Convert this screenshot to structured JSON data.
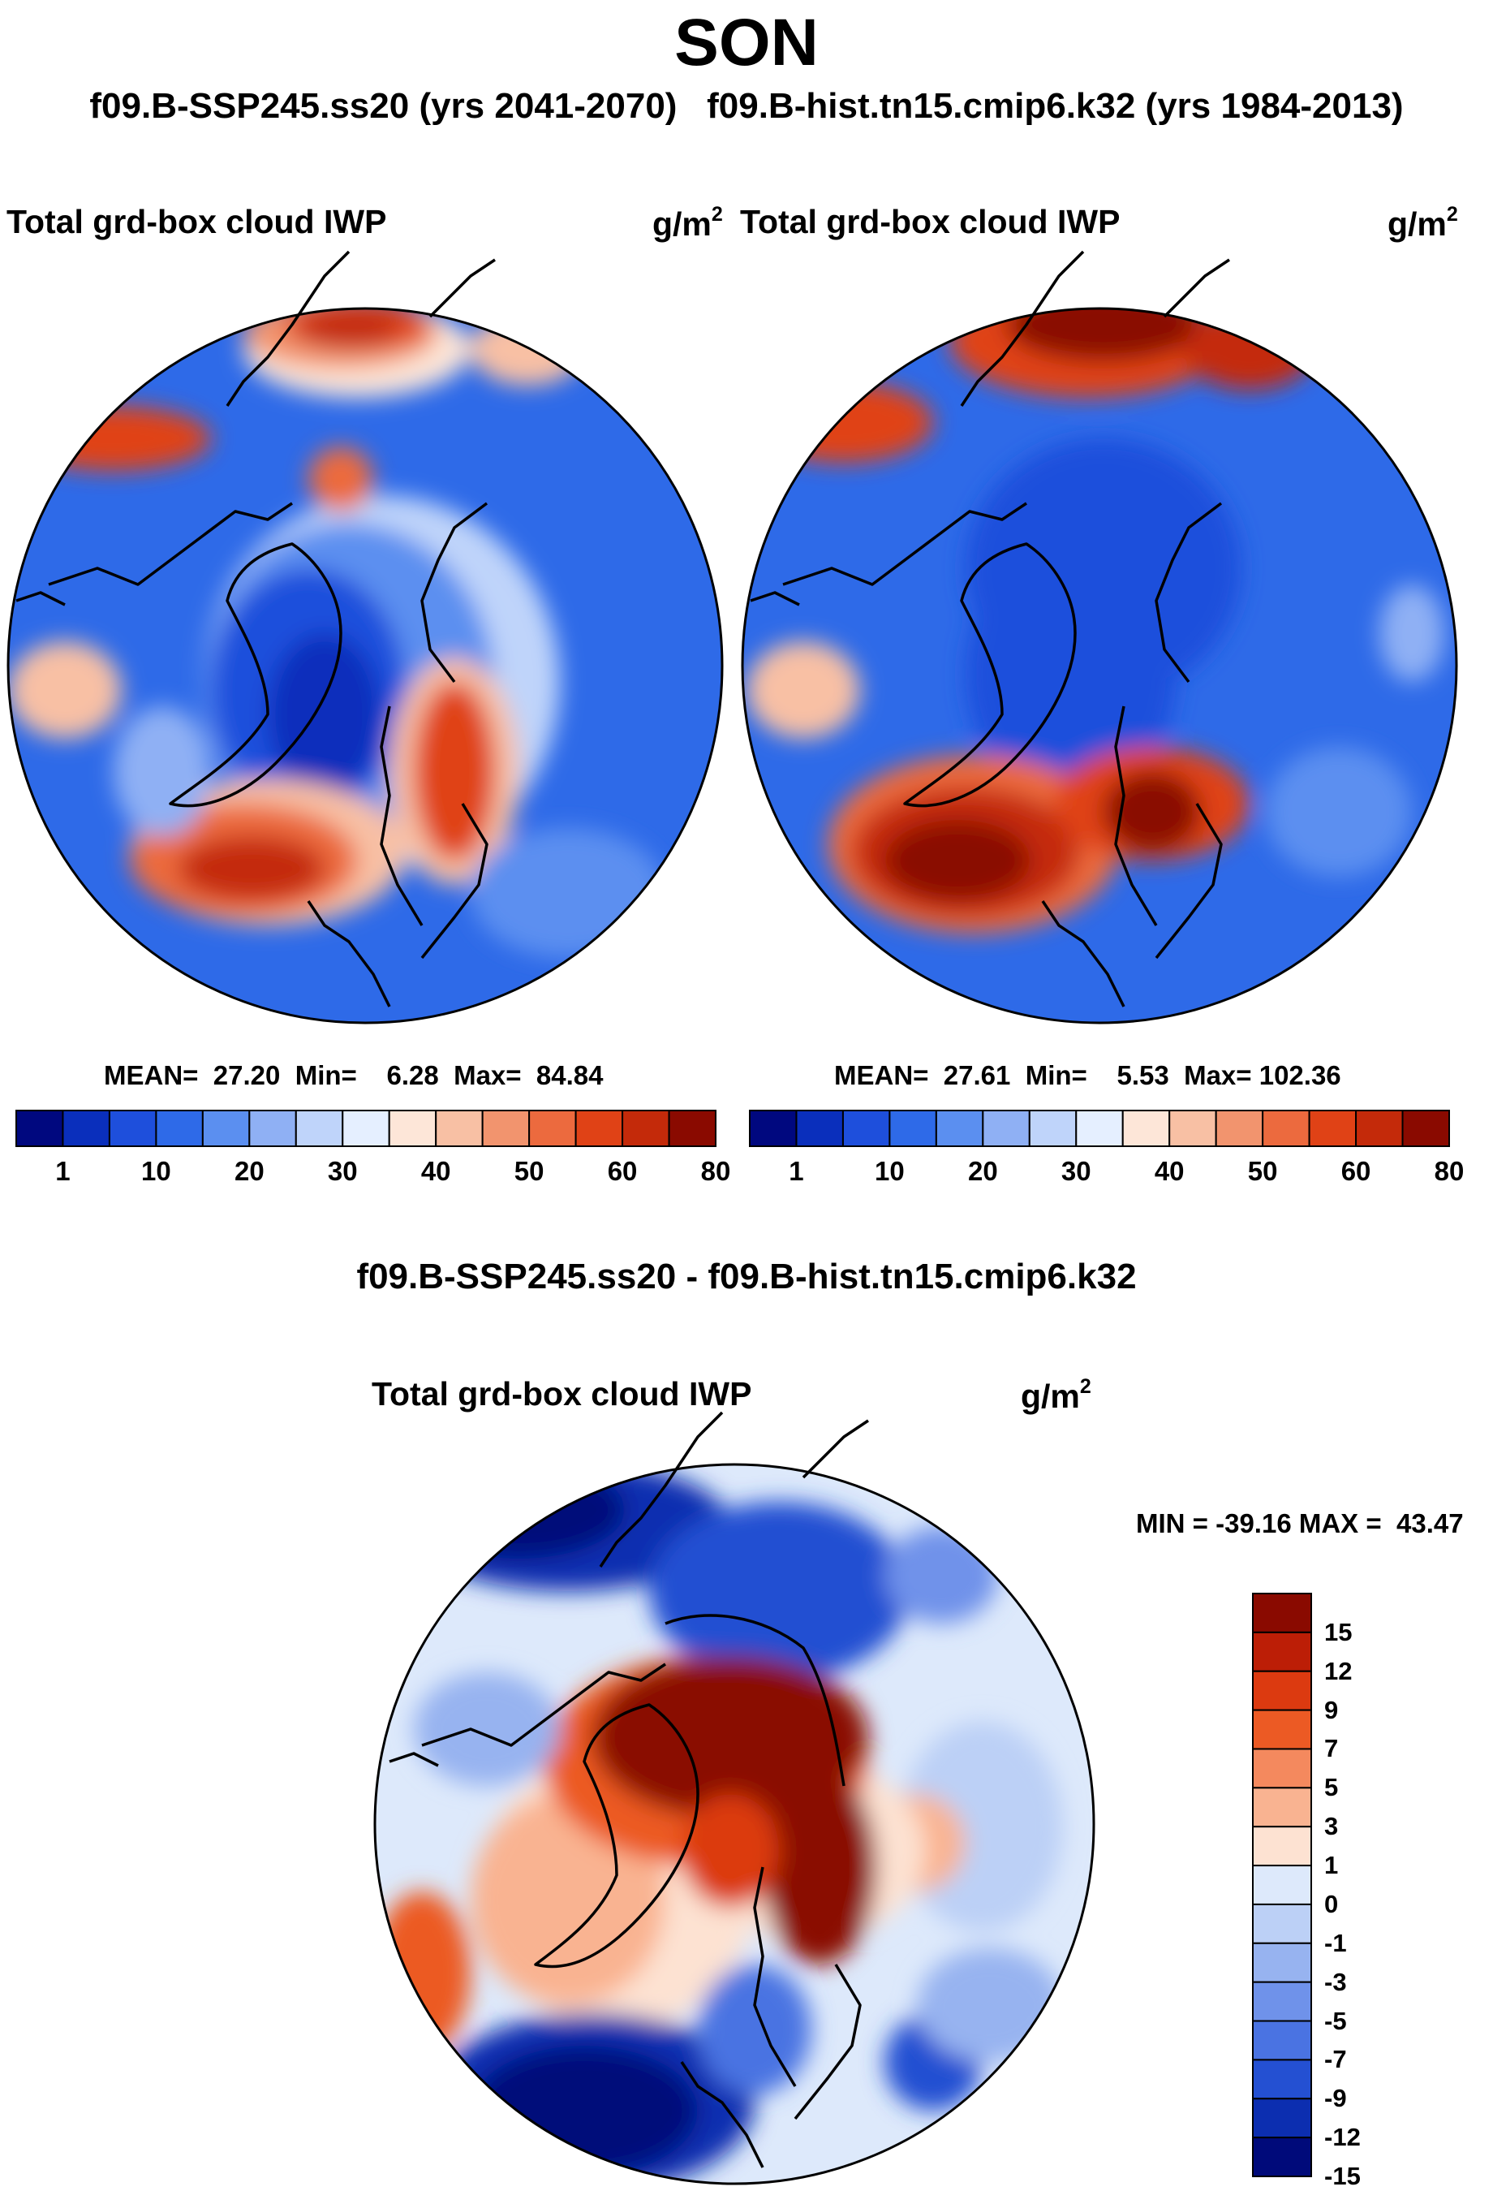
{
  "header": {
    "season": "SON",
    "left_run": "f09.B-SSP245.ss20 (yrs 2041-2070)",
    "right_run": "f09.B-hist.tn15.cmip6.k32 (yrs 1984-2013)",
    "diff_title": "f09.B-SSP245.ss20 - f09.B-hist.tn15.cmip6.k32"
  },
  "panels": {
    "left": {
      "variable": "Total grd-box cloud IWP",
      "units": "g/m",
      "units_exp": "2",
      "stats": {
        "mean_label": "MEAN=",
        "mean": "27.20",
        "min_label": "Min=",
        "min": "6.28",
        "max_label": "Max=",
        "max": "84.84"
      }
    },
    "right": {
      "variable": "Total grd-box cloud IWP",
      "units": "g/m",
      "units_exp": "2",
      "stats": {
        "mean_label": "MEAN=",
        "mean": "27.61",
        "min_label": "Min=",
        "min": "5.53",
        "max_label": "Max=",
        "max": "102.36"
      }
    },
    "diff": {
      "variable": "Total grd-box cloud IWP",
      "units": "g/m",
      "units_exp": "2",
      "minmax": {
        "min_label": "MIN =",
        "min": "-39.16",
        "max_label": "MAX =",
        "max": "43.47"
      }
    }
  },
  "colorbar_abs": {
    "ticks": [
      "1",
      "10",
      "20",
      "30",
      "40",
      "50",
      "60",
      "80"
    ],
    "colors": [
      "#00087f",
      "#0a2fbc",
      "#1e4fdc",
      "#2e6ae8",
      "#5b8ff0",
      "#8fb0f4",
      "#bfd4fa",
      "#e5efff",
      "#fde6d8",
      "#f8c0a4",
      "#f2946e",
      "#ec6a3e",
      "#e04216",
      "#c42a0a",
      "#8a0a00"
    ]
  },
  "colorbar_diff": {
    "ticks": [
      "15",
      "12",
      "9",
      "7",
      "5",
      "3",
      "1",
      "0",
      "-1",
      "-3",
      "-5",
      "-7",
      "-9",
      "-12",
      "-15"
    ],
    "colors": [
      "#8a0a00",
      "#bc1e06",
      "#dc3a10",
      "#ec5a24",
      "#f4895e",
      "#f9b391",
      "#fde2d2",
      "#dde9fb",
      "#bcd0f6",
      "#97b3f0",
      "#6f92ea",
      "#4a73e2",
      "#2450d2",
      "#0c2eb0",
      "#000a7a"
    ]
  },
  "chart_data": [
    {
      "type": "heatmap",
      "title": "Total grd-box cloud IWP",
      "subtitle": "f09.B-SSP245.ss20 (yrs 2041-2070)",
      "projection": "north polar stereographic",
      "units": "g/m^2",
      "mean": 27.2,
      "min": 6.28,
      "max": 84.84,
      "colorbar_levels": [
        1,
        10,
        20,
        30,
        40,
        50,
        60,
        80
      ]
    },
    {
      "type": "heatmap",
      "title": "Total grd-box cloud IWP",
      "subtitle": "f09.B-hist.tn15.cmip6.k32 (yrs 1984-2013)",
      "projection": "north polar stereographic",
      "units": "g/m^2",
      "mean": 27.61,
      "min": 5.53,
      "max": 102.36,
      "colorbar_levels": [
        1,
        10,
        20,
        30,
        40,
        50,
        60,
        80
      ]
    },
    {
      "type": "heatmap",
      "title": "Total grd-box cloud IWP",
      "subtitle": "f09.B-SSP245.ss20 - f09.B-hist.tn15.cmip6.k32",
      "projection": "north polar stereographic",
      "units": "g/m^2",
      "min": -39.16,
      "max": 43.47,
      "colorbar_levels": [
        -15,
        -12,
        -9,
        -7,
        -5,
        -3,
        -1,
        0,
        1,
        3,
        5,
        7,
        9,
        12,
        15
      ]
    }
  ]
}
